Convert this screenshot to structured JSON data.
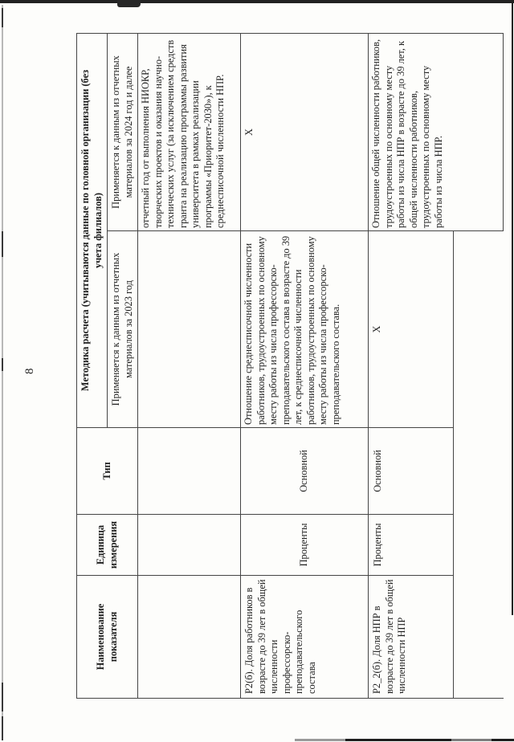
{
  "page": {
    "number": "8"
  },
  "table": {
    "headers": {
      "col1": "Наименование показателя",
      "col2": "Единица измерения",
      "col3": "Тип",
      "methodology_group": "Методика расчета (учитываются данные по головной организации (без учета филиалов)",
      "col2023": "Применяется к данным из отчетных материалов за 2023 год",
      "col2024": "Применяется к данным из отчетных материалов за 2024 год и далее"
    },
    "rows": [
      {
        "name": "",
        "unit": "",
        "type": "",
        "m2023": "",
        "m2024": "отчетный год от выполнения НИОКР, творческих проектов и оказания научно-технических услуг (за исключением средств гранта на реализацию программы развития университета в рамках реализации программы «Приоритет-2030»), к среднесписочной численности НПР."
      },
      {
        "name": "Р2(б). Доля работников в возрасте до 39 лет в общей численности профессорско-преподавательского состава",
        "unit": "Проценты",
        "type": "Основной",
        "m2023": "Отношение среднесписочной численности работников, трудоустроенных по основному месту работы из числа профессорско-преподавательского состава в возрасте до 39 лет, к среднесписочной численности работников, трудоустроенных по основному месту работы из числа профессорско-преподавательского состава.",
        "m2024": "Х"
      },
      {
        "name": "Р2_2(б). Доля НПР в возрасте до 39 лет в общей численности НПР",
        "unit": "Проценты",
        "type": "Основной",
        "m2023": "Х",
        "m2024": "Отношение общей численности работников, трудоустроенных по основному месту работы из числа НПР в возрасте до 39 лет, к общей численности работников, трудоустроенных по основному месту работы из числа НПР."
      },
      {
        "name": "",
        "unit": "",
        "type": "",
        "m2023": ""
      }
    ]
  }
}
